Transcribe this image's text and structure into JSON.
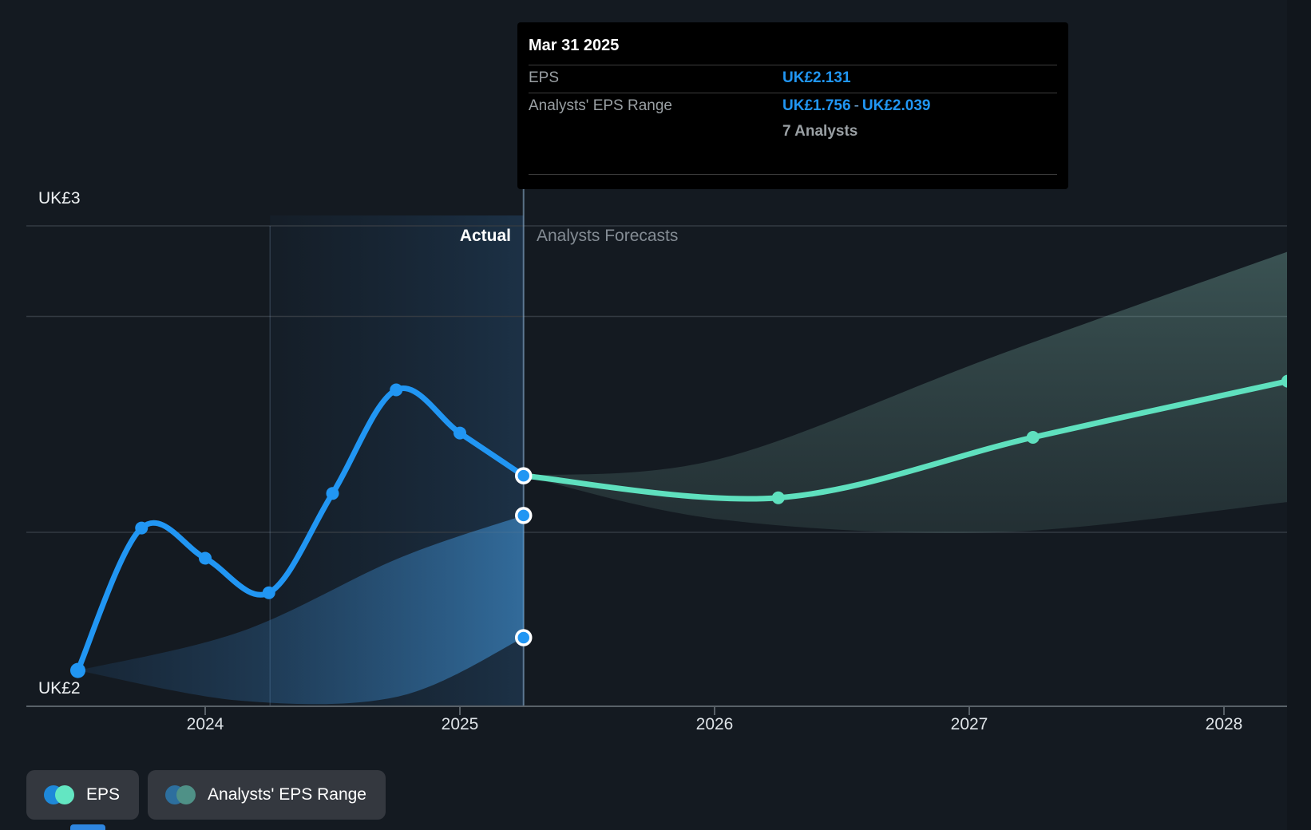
{
  "tooltip": {
    "title": "Mar 31 2025",
    "eps_label": "EPS",
    "eps_value": "UK£2.131",
    "range_label": "Analysts' EPS Range",
    "range_low": "UK£1.756",
    "range_separator": "-",
    "range_high": "UK£2.039",
    "analysts_count": "7 Analysts"
  },
  "y_axis": {
    "top_label": "UK£3",
    "bottom_label": "UK£2"
  },
  "x_axis": {
    "ticks": [
      "2024",
      "2025",
      "2026",
      "2027",
      "2028"
    ]
  },
  "phase_labels": {
    "actual": "Actual",
    "forecast": "Analysts Forecasts"
  },
  "legend": {
    "eps_label": "EPS",
    "range_label": "Analysts' EPS Range"
  },
  "colors": {
    "background": "#141a21",
    "eps_line": "#2196f3",
    "forecast_line": "#5fe0be",
    "tooltip_value_blue": "#2196f3",
    "gridline": "#333a42",
    "axis_line": "#596168",
    "divider_line": "rgba(160,200,235,0.5)",
    "legend_eps_dot_left": "#1e88d9",
    "legend_eps_dot_right": "#63e6c2",
    "legend_range_dot_left": "#2d6f9e",
    "legend_range_dot_right": "#4f9187"
  },
  "chart_data": {
    "type": "line",
    "title": "EPS actual vs analysts forecasts",
    "currency": "UK£",
    "ylim_labels": [
      "UK£2",
      "UK£3"
    ],
    "x_ticks": [
      2024,
      2025,
      2026,
      2027,
      2028
    ],
    "gridline_values": [
      2.0,
      2.5
    ],
    "hover_point": {
      "date": "Mar 31 2025",
      "eps": 2.131,
      "range_low": 1.756,
      "range_high": 2.039,
      "analysts": 7
    },
    "series": [
      {
        "name": "EPS",
        "segment": "actual",
        "color": "#2196f3",
        "points": [
          {
            "date": "Jun 30 2023",
            "x": 2023.5,
            "y": 1.68
          },
          {
            "date": "Sep 30 2023",
            "x": 2023.75,
            "y": 2.01
          },
          {
            "date": "Dec 31 2023",
            "x": 2024.0,
            "y": 1.94
          },
          {
            "date": "Mar 31 2024",
            "x": 2024.25,
            "y": 1.86
          },
          {
            "date": "Jun 30 2024",
            "x": 2024.5,
            "y": 2.09
          },
          {
            "date": "Sep 30 2024",
            "x": 2024.75,
            "y": 2.33
          },
          {
            "date": "Dec 31 2024",
            "x": 2025.0,
            "y": 2.23
          },
          {
            "date": "Mar 31 2025",
            "x": 2025.25,
            "y": 2.131,
            "ringed": true
          }
        ]
      },
      {
        "name": "EPS Forecast",
        "segment": "forecast",
        "color": "#5fe0be",
        "points": [
          {
            "date": "Mar 31 2025",
            "x": 2025.25,
            "y": 2.131,
            "nodot": true
          },
          {
            "date": "Mar 31 2026",
            "x": 2026.25,
            "y": 2.08
          },
          {
            "date": "Mar 31 2027",
            "x": 2027.25,
            "y": 2.22
          },
          {
            "date": "Mar 31 2028",
            "x": 2028.25,
            "y": 2.35
          }
        ]
      }
    ],
    "range_markers": [
      {
        "date": "Mar 31 2025",
        "x": 2025.25,
        "y": 2.039,
        "ringed": true
      },
      {
        "date": "Mar 31 2025",
        "x": 2025.25,
        "y": 1.756,
        "ringed": true
      }
    ],
    "bands": [
      {
        "name": "Analysts' EPS Range (actual period)",
        "fill": "blue",
        "top": [
          [
            2023.5,
            1.68
          ],
          [
            2024.14,
            1.77
          ],
          [
            2024.76,
            1.94
          ],
          [
            2025.25,
            2.039
          ]
        ],
        "bottom": [
          [
            2023.5,
            1.68
          ],
          [
            2024.14,
            1.61
          ],
          [
            2024.76,
            1.62
          ],
          [
            2025.25,
            1.756
          ]
        ]
      },
      {
        "name": "Analysts' EPS Range (forecast)",
        "fill": "teal",
        "top": [
          [
            2025.25,
            2.131
          ],
          [
            2026.02,
            2.17
          ],
          [
            2027.11,
            2.41
          ],
          [
            2028.25,
            2.65
          ]
        ],
        "bottom": [
          [
            2025.25,
            2.131
          ],
          [
            2026.02,
            2.03
          ],
          [
            2027.11,
            2.0
          ],
          [
            2028.25,
            2.07
          ]
        ]
      }
    ]
  }
}
